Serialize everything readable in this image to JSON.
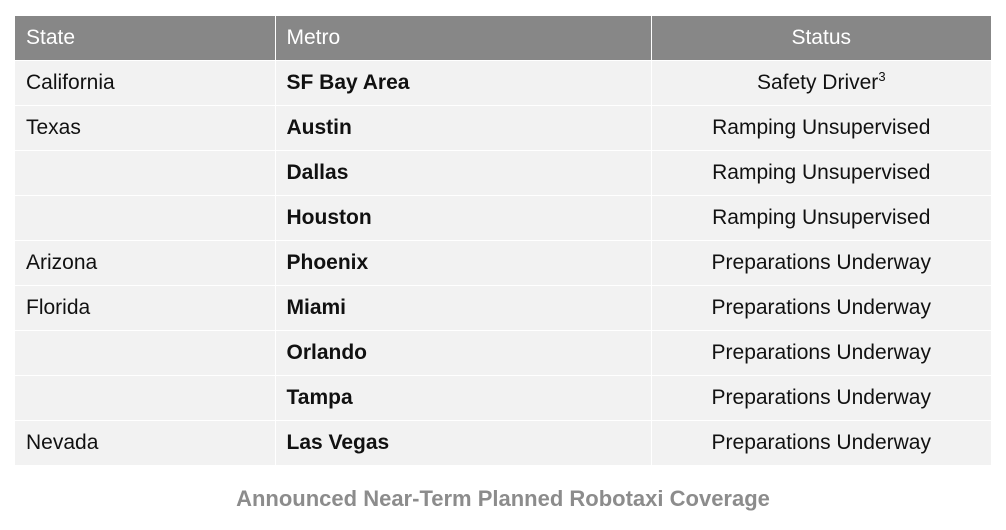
{
  "table": {
    "headers": {
      "state": "State",
      "metro": "Metro",
      "status": "Status"
    },
    "rows": [
      {
        "state": "California",
        "metro": "SF Bay Area",
        "status": "Safety Driver",
        "footnote": "3"
      },
      {
        "state": "Texas",
        "metro": "Austin",
        "status": "Ramping Unsupervised",
        "footnote": ""
      },
      {
        "state": "",
        "metro": "Dallas",
        "status": "Ramping Unsupervised",
        "footnote": ""
      },
      {
        "state": "",
        "metro": "Houston",
        "status": "Ramping Unsupervised",
        "footnote": ""
      },
      {
        "state": "Arizona",
        "metro": "Phoenix",
        "status": "Preparations Underway",
        "footnote": ""
      },
      {
        "state": "Florida",
        "metro": "Miami",
        "status": "Preparations Underway",
        "footnote": ""
      },
      {
        "state": "",
        "metro": "Orlando",
        "status": "Preparations Underway",
        "footnote": ""
      },
      {
        "state": "",
        "metro": "Tampa",
        "status": "Preparations Underway",
        "footnote": ""
      },
      {
        "state": "Nevada",
        "metro": "Las Vegas",
        "status": "Preparations Underway",
        "footnote": ""
      }
    ]
  },
  "caption": "Announced Near-Term Planned Robotaxi Coverage",
  "colors": {
    "header_bg": "#878787",
    "row_bg": "#f2f2f2",
    "caption_text": "#8c8c8c"
  }
}
